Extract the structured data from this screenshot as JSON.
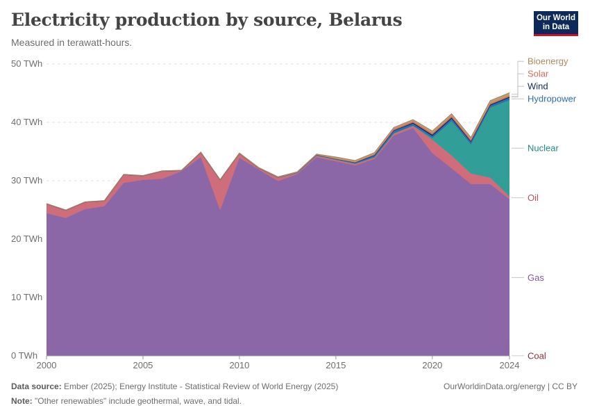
{
  "header": {
    "title": "Electricity production by source, Belarus",
    "subtitle": "Measured in terawatt-hours.",
    "logo_line1": "Our World",
    "logo_line2": "in Data"
  },
  "footer": {
    "source_label": "Data source:",
    "source_text": "Ember (2025); Energy Institute - Statistical Review of World Energy (2025)",
    "note_label": "Note:",
    "note_text": "\"Other renewables\" include geothermal, wave, and tidal.",
    "url": "OurWorldinData.org/energy | CC BY"
  },
  "colors": {
    "Coal": "#883039",
    "Gas": "#8c67a8",
    "Oil": "#cf6d7b",
    "Nuclear": "#319e97",
    "Hydropower": "#2c6fb0",
    "Wind": "#0b2a5b",
    "Solar": "#d96c5c",
    "Bioenergy": "#c09a6f",
    "label_Bioenergy": "#b08a5f",
    "label_Solar": "#d96c5c",
    "label_Wind": "#0b2a5b",
    "label_Hydropower": "#2c6fb0",
    "label_Nuclear": "#1f8a83",
    "label_Oil": "#c0505f",
    "label_Gas": "#7d5a98",
    "label_Coal": "#883039"
  },
  "chart_data": {
    "type": "area",
    "stacked": true,
    "title": "Electricity production by source, Belarus",
    "ylabel": "TWh",
    "ylim": [
      0,
      50
    ],
    "xlim": [
      2000,
      2024
    ],
    "y_ticks": [
      0,
      10,
      20,
      30,
      40,
      50
    ],
    "y_tick_labels": [
      "0 TWh",
      "10 TWh",
      "20 TWh",
      "30 TWh",
      "40 TWh",
      "50 TWh"
    ],
    "x_ticks": [
      2000,
      2005,
      2010,
      2015,
      2020,
      2024
    ],
    "x_tick_labels": [
      "2000",
      "2005",
      "2010",
      "2015",
      "2020",
      "2024"
    ],
    "grid": true,
    "x": [
      2000,
      2001,
      2002,
      2003,
      2004,
      2005,
      2006,
      2007,
      2008,
      2009,
      2010,
      2011,
      2012,
      2013,
      2014,
      2015,
      2016,
      2017,
      2018,
      2019,
      2020,
      2021,
      2022,
      2023,
      2024
    ],
    "series": [
      {
        "name": "Coal",
        "values": [
          0.02,
          0.02,
          0.02,
          0.02,
          0.02,
          0.02,
          0.02,
          0.02,
          0.02,
          0.02,
          0.02,
          0.02,
          0.02,
          0.02,
          0.02,
          0.02,
          0.02,
          0.02,
          0.02,
          0.02,
          0.02,
          0.02,
          0.02,
          0.02,
          0.02
        ]
      },
      {
        "name": "Gas",
        "values": [
          24.4,
          23.6,
          25.1,
          25.6,
          29.6,
          30.1,
          30.3,
          31.6,
          34.0,
          24.9,
          33.9,
          31.9,
          29.9,
          31.1,
          34.0,
          33.3,
          32.6,
          33.7,
          37.7,
          39.0,
          34.7,
          32.1,
          29.4,
          29.4,
          26.8
        ]
      },
      {
        "name": "Oil",
        "values": [
          1.6,
          1.3,
          1.2,
          0.9,
          1.4,
          0.7,
          1.3,
          0.1,
          0.8,
          5.2,
          0.7,
          0.2,
          0.6,
          0.2,
          0.3,
          0.3,
          0.3,
          0.3,
          0.4,
          0.4,
          2.3,
          2.2,
          1.8,
          1.1,
          0.5
        ]
      },
      {
        "name": "Nuclear",
        "values": [
          0,
          0,
          0,
          0,
          0,
          0,
          0,
          0,
          0,
          0,
          0,
          0,
          0,
          0,
          0,
          0,
          0,
          0,
          0,
          0,
          0.3,
          5.9,
          5.0,
          12.0,
          16.5
        ]
      },
      {
        "name": "Hydropower",
        "values": [
          0.02,
          0.02,
          0.02,
          0.03,
          0.03,
          0.03,
          0.03,
          0.03,
          0.04,
          0.04,
          0.04,
          0.04,
          0.05,
          0.1,
          0.12,
          0.1,
          0.15,
          0.3,
          0.4,
          0.35,
          0.35,
          0.4,
          0.4,
          0.35,
          0.4
        ]
      },
      {
        "name": "Wind",
        "values": [
          0,
          0,
          0,
          0,
          0,
          0,
          0,
          0,
          0,
          0,
          0,
          0.01,
          0.01,
          0.01,
          0.01,
          0.02,
          0.05,
          0.05,
          0.1,
          0.15,
          0.2,
          0.2,
          0.15,
          0.15,
          0.15
        ]
      },
      {
        "name": "Solar",
        "values": [
          0,
          0,
          0,
          0,
          0,
          0,
          0,
          0,
          0,
          0,
          0,
          0,
          0,
          0,
          0.01,
          0.02,
          0.05,
          0.15,
          0.2,
          0.25,
          0.25,
          0.25,
          0.25,
          0.2,
          0.2
        ]
      },
      {
        "name": "Bioenergy",
        "values": [
          0.05,
          0.05,
          0.05,
          0.05,
          0.05,
          0.05,
          0.05,
          0.05,
          0.05,
          0.05,
          0.1,
          0.1,
          0.1,
          0.1,
          0.1,
          0.3,
          0.3,
          0.3,
          0.3,
          0.3,
          0.4,
          0.4,
          0.4,
          0.5,
          0.5
        ]
      }
    ],
    "legend_order": [
      "Bioenergy",
      "Solar",
      "Wind",
      "Hydropower",
      "Nuclear",
      "Oil",
      "Gas",
      "Coal"
    ]
  }
}
